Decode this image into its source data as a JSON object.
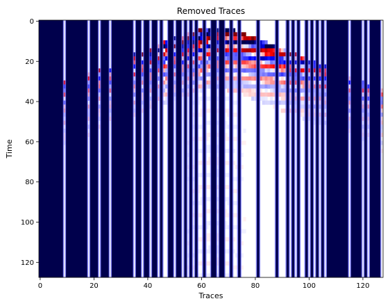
{
  "chart_data": {
    "type": "heatmap",
    "title": "Removed Traces",
    "xlabel": "Traces",
    "ylabel": "Time",
    "xlim": [
      0,
      127
    ],
    "ylim": [
      128,
      0
    ],
    "x_ticks": [
      0,
      20,
      40,
      60,
      80,
      100,
      120
    ],
    "y_ticks": [
      0,
      20,
      40,
      60,
      80,
      100,
      120
    ],
    "colormap": "seismic",
    "colors": {
      "low": "#00004c",
      "mid": "#ffffff",
      "high": "#800000"
    },
    "removed_trace_color": "#00004c",
    "removed_traces": [
      0,
      1,
      2,
      3,
      4,
      5,
      6,
      7,
      8,
      10,
      11,
      12,
      13,
      14,
      15,
      16,
      17,
      19,
      20,
      21,
      23,
      24,
      25,
      27,
      28,
      29,
      30,
      31,
      32,
      33,
      34,
      36,
      37,
      39,
      40,
      42,
      43,
      45,
      48,
      49,
      51,
      52,
      54,
      56,
      58,
      61,
      64,
      65,
      67,
      68,
      71,
      74,
      81,
      88,
      92,
      94,
      96,
      99,
      101,
      103,
      105,
      107,
      108,
      109,
      110,
      111,
      112,
      113,
      114,
      116,
      117,
      118,
      119,
      121,
      123,
      124,
      125,
      126
    ],
    "grid": false,
    "legend": "none"
  }
}
